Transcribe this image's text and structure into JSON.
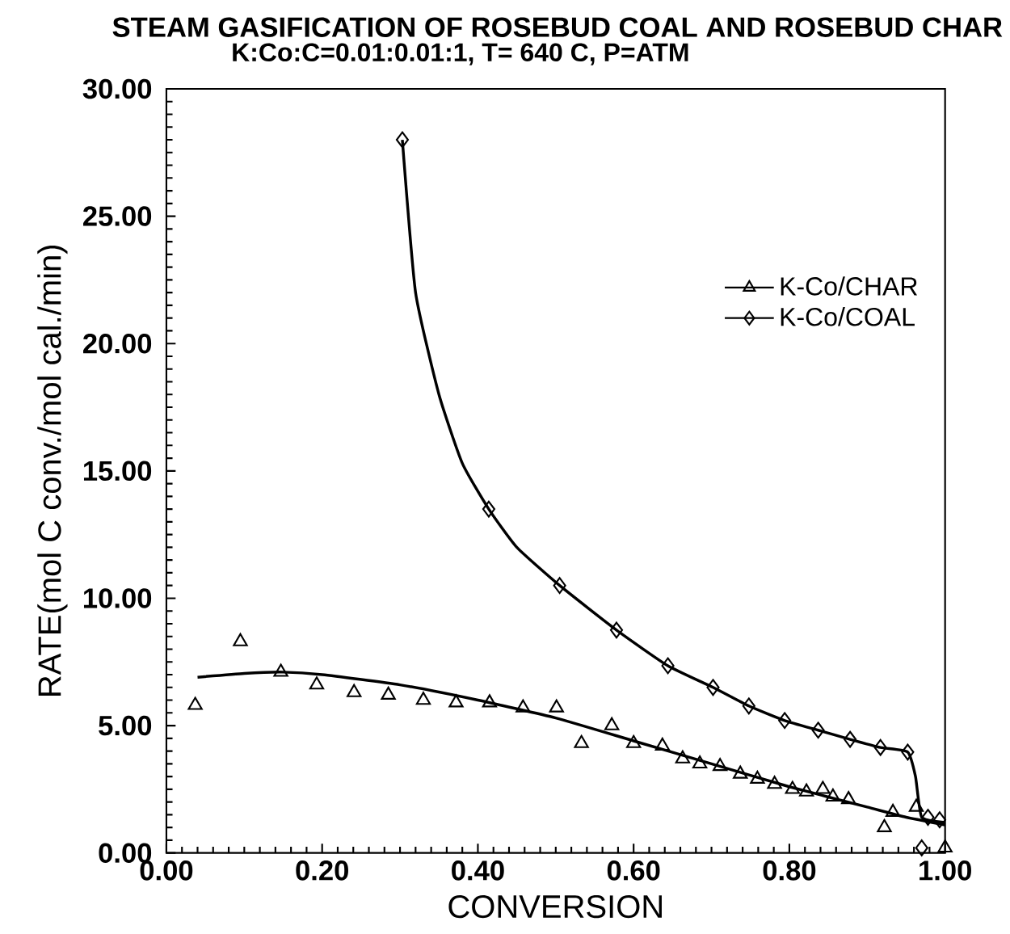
{
  "chart_data": {
    "type": "scatter",
    "title": "STEAM GASIFICATION OF ROSEBUD COAL AND ROSEBUD CHAR",
    "subtitle": "K:Co:C=0.01:0.01:1, T= 640 C, P=ATM",
    "xlabel": "CONVERSION",
    "ylabel": "RATE(mol C conv./mol cal./min)",
    "xlim": [
      0,
      1
    ],
    "ylim": [
      0,
      30
    ],
    "xticks": [
      {
        "value": 0,
        "label": "0.00"
      },
      {
        "value": 0.2,
        "label": "0.20"
      },
      {
        "value": 0.4,
        "label": "0.40"
      },
      {
        "value": 0.6,
        "label": "0.60"
      },
      {
        "value": 0.8,
        "label": "0.80"
      },
      {
        "value": 1,
        "label": "1.00"
      }
    ],
    "yticks": [
      {
        "value": 0,
        "label": "0.00"
      },
      {
        "value": 5,
        "label": "5.00"
      },
      {
        "value": 10,
        "label": "10.00"
      },
      {
        "value": 15,
        "label": "15.00"
      },
      {
        "value": 20,
        "label": "20.00"
      },
      {
        "value": 25,
        "label": "25.00"
      },
      {
        "value": 30,
        "label": "30.00"
      }
    ],
    "legend": "right",
    "grid": false,
    "series": [
      {
        "name": "K-Co/CHAR",
        "marker": "triangle",
        "color": "#000000",
        "x": [
          0.037,
          0.095,
          0.147,
          0.193,
          0.241,
          0.285,
          0.33,
          0.372,
          0.415,
          0.458,
          0.501,
          0.533,
          0.572,
          0.6,
          0.637,
          0.663,
          0.685,
          0.711,
          0.737,
          0.759,
          0.781,
          0.804,
          0.822,
          0.843,
          0.856,
          0.876,
          0.922,
          0.933,
          0.963,
          1.0
        ],
        "values": [
          5.8,
          8.3,
          7.1,
          6.6,
          6.3,
          6.2,
          6.0,
          5.9,
          5.9,
          5.7,
          5.7,
          4.3,
          5.0,
          4.3,
          4.2,
          3.7,
          3.5,
          3.4,
          3.1,
          2.9,
          2.7,
          2.5,
          2.4,
          2.5,
          2.2,
          2.1,
          1.0,
          1.6,
          1.8,
          0.2
        ]
      },
      {
        "name": "K-Co/COAL",
        "marker": "diamond",
        "color": "#000000",
        "x": [
          0.303,
          0.414,
          0.505,
          0.578,
          0.644,
          0.702,
          0.748,
          0.794,
          0.837,
          0.878,
          0.917,
          0.952,
          0.97,
          0.978,
          0.993
        ],
        "values": [
          28.0,
          13.5,
          10.5,
          8.75,
          7.35,
          6.5,
          5.77,
          5.2,
          4.82,
          4.46,
          4.14,
          3.96,
          0.2,
          1.4,
          1.3
        ]
      },
      {
        "type": "line",
        "marker": "none",
        "color": "#000000",
        "x": [
          0.04,
          0.1,
          0.15,
          0.2,
          0.3,
          0.4,
          0.5,
          0.6,
          0.7,
          0.8,
          0.9,
          0.95,
          1.0
        ],
        "values": [
          6.9,
          7.05,
          7.1,
          7.0,
          6.6,
          6.0,
          5.3,
          4.4,
          3.5,
          2.6,
          1.8,
          1.4,
          1.1
        ]
      },
      {
        "type": "line",
        "marker": "none",
        "color": "#000000",
        "x": [
          0.303,
          0.32,
          0.35,
          0.38,
          0.414,
          0.45,
          0.505,
          0.578,
          0.644,
          0.702,
          0.748,
          0.794,
          0.837,
          0.878,
          0.917,
          0.952,
          0.962,
          0.97,
          1.0
        ],
        "values": [
          28.0,
          22.0,
          18.0,
          15.3,
          13.5,
          12.0,
          10.5,
          8.75,
          7.35,
          6.5,
          5.77,
          5.2,
          4.82,
          4.46,
          4.14,
          3.96,
          3.0,
          1.4,
          1.2
        ]
      }
    ]
  }
}
